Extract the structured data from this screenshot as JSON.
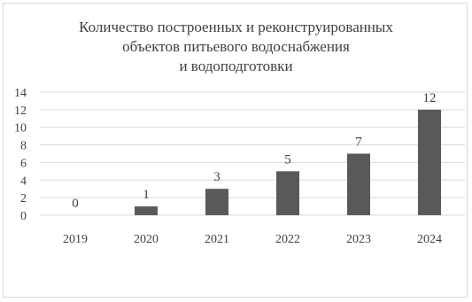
{
  "chart_data": {
    "type": "bar",
    "title_lines": [
      "Количество построенных и реконструированных",
      "объектов питьевого водоснабжения",
      "и водоподготовки"
    ],
    "categories": [
      "2019",
      "2020",
      "2021",
      "2022",
      "2023",
      "2024"
    ],
    "values": [
      0,
      1,
      3,
      5,
      7,
      12
    ],
    "data_labels": [
      "0",
      "1",
      "3",
      "5",
      "7",
      "12"
    ],
    "ylim": [
      0,
      14
    ],
    "y_ticks": [
      0,
      2,
      4,
      6,
      8,
      10,
      12,
      14
    ],
    "grid": true,
    "legend": "none",
    "bar_color": "#595959",
    "grid_color": "#d9d9d9",
    "text_color": "#404040"
  }
}
